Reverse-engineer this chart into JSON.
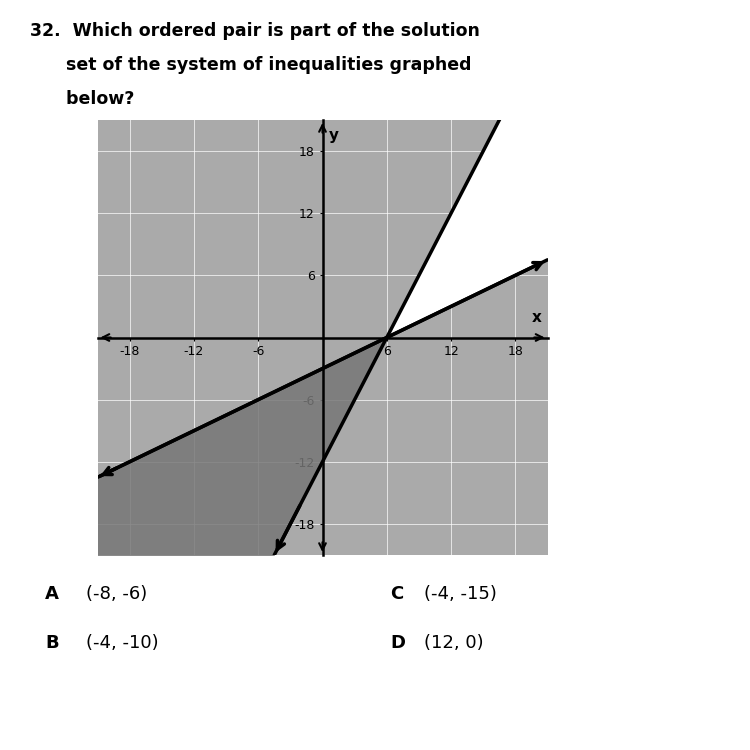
{
  "xlim": [
    -21,
    21
  ],
  "ylim": [
    -21,
    21
  ],
  "xticks": [
    -18,
    -12,
    -6,
    0,
    6,
    12,
    18
  ],
  "yticks": [
    -18,
    -12,
    -6,
    0,
    6,
    12,
    18
  ],
  "line1_slope": 2.0,
  "line1_intercept": -12,
  "line2_slope": 0.5,
  "line2_intercept": -3,
  "graph_bg": "#aaaaaa",
  "shade_light": "#bbbbbb",
  "shade_dark": "#888888",
  "question_line1": "32.  Which ordered pair is part of the solution",
  "question_line2": "      set of the system of inequalities graphed",
  "question_line3": "      below?",
  "answer_A_label": "A",
  "answer_A_val": "(-8, -6)",
  "answer_B_label": "B",
  "answer_B_val": "(-4, -10)",
  "answer_C_label": "C",
  "answer_C_val": "(-4, -15)",
  "answer_D_label": "D",
  "answer_D_val": "(12, 0)"
}
